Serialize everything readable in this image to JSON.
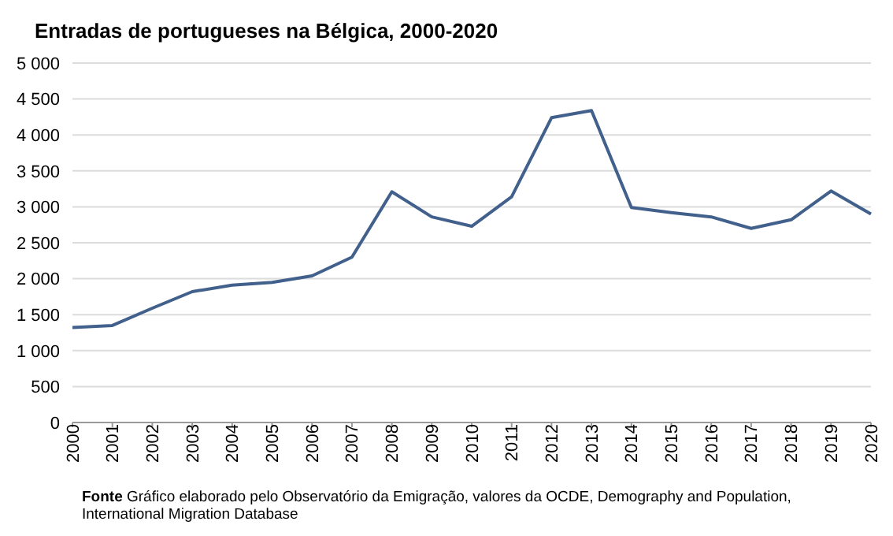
{
  "chart_data": {
    "type": "line",
    "title": "Entradas  de portugueses  na Bélgica, 2000-2020",
    "categories": [
      "2000",
      "2001",
      "2002",
      "2003",
      "2004",
      "2005",
      "2006",
      "2007",
      "2008",
      "2009",
      "2010",
      "2011",
      "2012",
      "2013",
      "2014",
      "2015",
      "2016",
      "2017",
      "2018",
      "2019",
      "2020"
    ],
    "series": [
      {
        "color": "#41608c",
        "values": [
          1320,
          1350,
          1590,
          1820,
          1910,
          1950,
          2040,
          2300,
          3210,
          2860,
          2730,
          3140,
          4240,
          4340,
          2990,
          2920,
          2860,
          2700,
          2820,
          3220,
          2900
        ]
      }
    ],
    "ylim": [
      0,
      5000
    ],
    "yticks": [
      0,
      500,
      {
        "value": 1000,
        "label": "1 000"
      },
      {
        "value": 1500,
        "label": "1 500"
      },
      {
        "value": 2000,
        "label": "2 000"
      },
      {
        "value": 2500,
        "label": "2 500"
      },
      {
        "value": 3000,
        "label": "3 000"
      },
      {
        "value": 3500,
        "label": "3 500"
      },
      {
        "value": 4000,
        "label": "4 000"
      },
      {
        "value": 4500,
        "label": "4 500"
      },
      {
        "value": 5000,
        "label": "5 000"
      }
    ],
    "grid": "y",
    "marker": "none",
    "line_style": "solid",
    "legend": false,
    "annotations": [
      "Fonte  Gráfico elaborado pelo  Observatório da Emigração, valores da OCDE, Demography and Population, International Migration  Database"
    ]
  }
}
